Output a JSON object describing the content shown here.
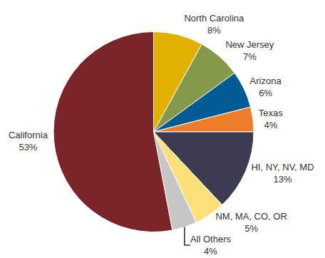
{
  "chart_data": {
    "type": "pie",
    "categories": [
      "North Carolina",
      "New Jersey",
      "Arizona",
      "Texas",
      "HI, NY, NV, MD",
      "NM, MA, CO, OR",
      "All Others",
      "California"
    ],
    "values": [
      8,
      7,
      6,
      4,
      13,
      5,
      4,
      53
    ],
    "value_labels": [
      "8%",
      "7%",
      "6%",
      "4%",
      "13%",
      "5%",
      "4%",
      "53%"
    ],
    "colors": [
      "#E2B100",
      "#85994B",
      "#005A93",
      "#EE7D2A",
      "#3B3B52",
      "#FDE07A",
      "#C6C6C6",
      "#7B2528"
    ],
    "data_labels": true
  }
}
